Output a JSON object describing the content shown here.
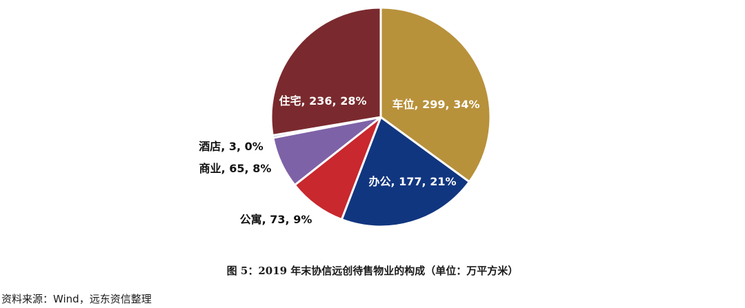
{
  "chart_data": {
    "type": "pie",
    "title": "",
    "slices": [
      {
        "name": "车位",
        "value": 299,
        "percent": "34%",
        "label": "车位, 299, 34%",
        "color": "#B8913B"
      },
      {
        "name": "办公",
        "value": 177,
        "percent": "21%",
        "label": "办公, 177, 21%",
        "color": "#113680"
      },
      {
        "name": "公寓",
        "value": 73,
        "percent": "9%",
        "label": "公寓, 73, 9%",
        "color": "#C8282E"
      },
      {
        "name": "商业",
        "value": 65,
        "percent": "8%",
        "label": "商业, 65, 8%",
        "color": "#7E62A7"
      },
      {
        "name": "酒店",
        "value": 3,
        "percent": "0%",
        "label": "酒店, 3, 0%",
        "color": "#3B5A95"
      },
      {
        "name": "住宅",
        "value": 236,
        "percent": "28%",
        "label": "住宅, 236, 28%",
        "color": "#7A2A2E"
      }
    ]
  },
  "caption": "图 5：2019 年末协信远创待售物业的构成（单位：万平方米）",
  "source": "资料来源：Wind，远东资信整理"
}
